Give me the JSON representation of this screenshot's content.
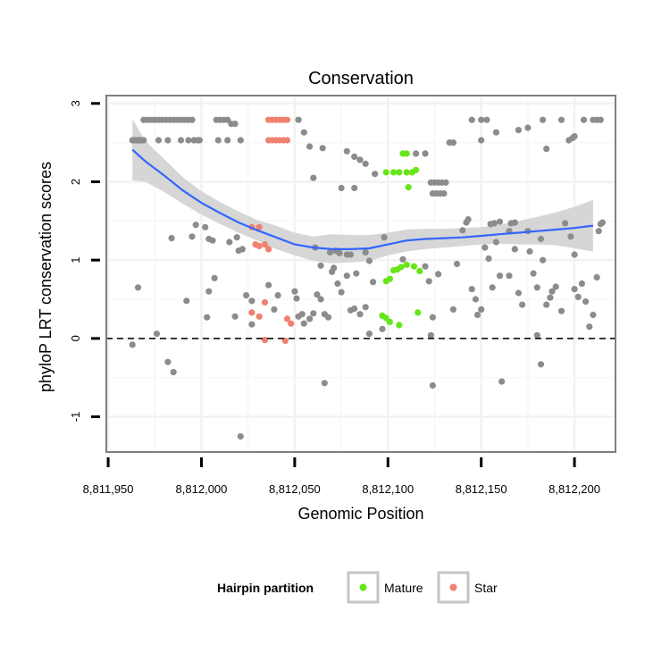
{
  "chart_data": {
    "type": "scatter",
    "title": "Conservation",
    "xlabel": "Genomic Position",
    "ylabel": "phyloP LRT conservation scores",
    "xlim": [
      8811949,
      8812222
    ],
    "ylim": [
      -1.45,
      3.1
    ],
    "x_ticks": [
      8811950,
      8812000,
      8812050,
      8812100,
      8812150,
      8812200
    ],
    "x_tick_labels": [
      "8,811,950",
      "8,812,000",
      "8,812,050",
      "8,812,100",
      "8,812,150",
      "8,812,200"
    ],
    "y_ticks": [
      -1,
      0,
      1,
      2,
      3
    ],
    "y_tick_labels": [
      "-1",
      "0",
      "1",
      "2",
      "3"
    ],
    "reference_line": {
      "y": 0,
      "style": "dashed"
    },
    "grid": true,
    "legend": {
      "title": "Hairpin partition",
      "position": "bottom",
      "entries": [
        {
          "label": "Mature",
          "color": "#66e61a"
        },
        {
          "label": "Star",
          "color": "#f08070"
        }
      ]
    },
    "colors": {
      "other": "#8c8c8c",
      "Mature": "#66e61a",
      "Star": "#f08070",
      "smooth": "#3366ff",
      "band": "#d4d4d4"
    },
    "series": [
      {
        "name": "Other",
        "points": [
          [
            8811963,
            2.53
          ],
          [
            8811964,
            2.53
          ],
          [
            8811965,
            2.53
          ],
          [
            8811966,
            2.53
          ],
          [
            8811967,
            2.53
          ],
          [
            8811968,
            2.53
          ],
          [
            8811969,
            2.53
          ],
          [
            8811969,
            2.79
          ],
          [
            8811971,
            2.79
          ],
          [
            8811973,
            2.79
          ],
          [
            8811975,
            2.79
          ],
          [
            8811977,
            2.79
          ],
          [
            8811979,
            2.79
          ],
          [
            8811981,
            2.79
          ],
          [
            8811983,
            2.79
          ],
          [
            8811985,
            2.79
          ],
          [
            8811987,
            2.79
          ],
          [
            8811989,
            2.79
          ],
          [
            8811991,
            2.79
          ],
          [
            8811993,
            2.79
          ],
          [
            8811995,
            2.79
          ],
          [
            8811977,
            2.53
          ],
          [
            8811982,
            2.53
          ],
          [
            8811989,
            2.53
          ],
          [
            8811993,
            2.53
          ],
          [
            8811996,
            2.53
          ],
          [
            8811998,
            2.53
          ],
          [
            8811999,
            2.53
          ],
          [
            8812008,
            2.79
          ],
          [
            8812010,
            2.79
          ],
          [
            8812012,
            2.79
          ],
          [
            8812014,
            2.79
          ],
          [
            8812016,
            2.74
          ],
          [
            8812018,
            2.74
          ],
          [
            8812009,
            2.53
          ],
          [
            8812014,
            2.53
          ],
          [
            8812021,
            2.53
          ],
          [
            8812052,
            2.79
          ],
          [
            8812055,
            2.63
          ],
          [
            8812058,
            2.45
          ],
          [
            8812065,
            2.43
          ],
          [
            8812060,
            2.05
          ],
          [
            8812078,
            2.39
          ],
          [
            8812082,
            2.32
          ],
          [
            8812085,
            2.28
          ],
          [
            8812088,
            2.23
          ],
          [
            8812075,
            1.92
          ],
          [
            8812082,
            1.92
          ],
          [
            8812093,
            2.1
          ],
          [
            8812115,
            2.36
          ],
          [
            8812120,
            2.36
          ],
          [
            8812123,
            1.99
          ],
          [
            8812125,
            1.99
          ],
          [
            8812127,
            1.99
          ],
          [
            8812129,
            1.99
          ],
          [
            8812131,
            1.99
          ],
          [
            8812124,
            1.85
          ],
          [
            8812126,
            1.85
          ],
          [
            8812128,
            1.85
          ],
          [
            8812130,
            1.85
          ],
          [
            8812133,
            2.5
          ],
          [
            8812135,
            2.5
          ],
          [
            8812145,
            2.79
          ],
          [
            8812150,
            2.79
          ],
          [
            8812153,
            2.79
          ],
          [
            8812150,
            2.53
          ],
          [
            8812158,
            2.63
          ],
          [
            8812170,
            2.66
          ],
          [
            8812175,
            2.69
          ],
          [
            8812183,
            2.79
          ],
          [
            8812185,
            2.42
          ],
          [
            8812193,
            2.79
          ],
          [
            8812197,
            2.53
          ],
          [
            8812199,
            2.56
          ],
          [
            8812200,
            2.58
          ],
          [
            8812205,
            2.79
          ],
          [
            8812210,
            2.79
          ],
          [
            8812212,
            2.79
          ],
          [
            8812214,
            2.79
          ],
          [
            8811963,
            -0.08
          ],
          [
            8811966,
            0.65
          ],
          [
            8811976,
            0.06
          ],
          [
            8811982,
            -0.3
          ],
          [
            8811985,
            -0.43
          ],
          [
            8811984,
            1.28
          ],
          [
            8811992,
            0.48
          ],
          [
            8811995,
            1.3
          ],
          [
            8811997,
            1.45
          ],
          [
            8812002,
            1.42
          ],
          [
            8812004,
            1.27
          ],
          [
            8812006,
            1.25
          ],
          [
            8812004,
            0.6
          ],
          [
            8812003,
            0.27
          ],
          [
            8812007,
            0.77
          ],
          [
            8812015,
            1.23
          ],
          [
            8812019,
            1.29
          ],
          [
            8812020,
            1.12
          ],
          [
            8812022,
            1.14
          ],
          [
            8812018,
            0.28
          ],
          [
            8812021,
            -1.25
          ],
          [
            8812024,
            0.55
          ],
          [
            8812027,
            0.48
          ],
          [
            8812027,
            0.18
          ],
          [
            8812036,
            0.68
          ],
          [
            8812039,
            0.37
          ],
          [
            8812041,
            0.55
          ],
          [
            8812050,
            0.6
          ],
          [
            8812051,
            0.51
          ],
          [
            8812052,
            0.28
          ],
          [
            8812054,
            0.31
          ],
          [
            8812055,
            0.19
          ],
          [
            8812058,
            0.25
          ],
          [
            8812060,
            0.32
          ],
          [
            8812062,
            0.56
          ],
          [
            8812064,
            0.5
          ],
          [
            8812066,
            0.31
          ],
          [
            8812068,
            0.27
          ],
          [
            8812070,
            0.85
          ],
          [
            8812071,
            0.9
          ],
          [
            8812073,
            0.7
          ],
          [
            8812075,
            0.59
          ],
          [
            8812078,
            0.8
          ],
          [
            8812080,
            0.36
          ],
          [
            8812082,
            0.38
          ],
          [
            8812085,
            0.31
          ],
          [
            8812088,
            0.4
          ],
          [
            8812090,
            0.06
          ],
          [
            8812066,
            -0.57
          ],
          [
            8812061,
            1.16
          ],
          [
            8812064,
            0.93
          ],
          [
            8812069,
            1.1
          ],
          [
            8812072,
            1.12
          ],
          [
            8812074,
            1.09
          ],
          [
            8812078,
            1.07
          ],
          [
            8812080,
            1.07
          ],
          [
            8812083,
            0.83
          ],
          [
            8812088,
            1.1
          ],
          [
            8812090,
            0.99
          ],
          [
            8812092,
            0.72
          ],
          [
            8812097,
            0.12
          ],
          [
            8812098,
            1.29
          ],
          [
            8812108,
            1.01
          ],
          [
            8812120,
            0.92
          ],
          [
            8812122,
            0.73
          ],
          [
            8812124,
            0.27
          ],
          [
            8812123,
            0.04
          ],
          [
            8812124,
            -0.6
          ],
          [
            8812127,
            0.82
          ],
          [
            8812135,
            0.37
          ],
          [
            8812137,
            0.95
          ],
          [
            8812142,
            1.48
          ],
          [
            8812143,
            1.52
          ],
          [
            8812145,
            0.63
          ],
          [
            8812147,
            0.5
          ],
          [
            8812148,
            0.3
          ],
          [
            8812150,
            0.37
          ],
          [
            8812152,
            1.16
          ],
          [
            8812154,
            1.02
          ],
          [
            8812156,
            0.65
          ],
          [
            8812158,
            1.23
          ],
          [
            8812160,
            0.8
          ],
          [
            8812161,
            -0.55
          ],
          [
            8812165,
            1.37
          ],
          [
            8812166,
            1.47
          ],
          [
            8812168,
            1.48
          ],
          [
            8812168,
            1.14
          ],
          [
            8812170,
            0.58
          ],
          [
            8812172,
            0.43
          ],
          [
            8812175,
            1.37
          ],
          [
            8812176,
            1.11
          ],
          [
            8812178,
            0.83
          ],
          [
            8812180,
            0.65
          ],
          [
            8812182,
            1.27
          ],
          [
            8812183,
            1.0
          ],
          [
            8812185,
            0.43
          ],
          [
            8812180,
            0.04
          ],
          [
            8812182,
            -0.33
          ],
          [
            8812187,
            0.52
          ],
          [
            8812190,
            0.66
          ],
          [
            8812193,
            0.35
          ],
          [
            8812195,
            1.47
          ],
          [
            8812198,
            1.3
          ],
          [
            8812200,
            1.07
          ],
          [
            8812202,
            0.53
          ],
          [
            8812204,
            0.7
          ],
          [
            8812206,
            0.47
          ],
          [
            8812208,
            0.15
          ],
          [
            8812210,
            0.3
          ],
          [
            8812212,
            0.78
          ],
          [
            8812213,
            1.37
          ],
          [
            8812214,
            1.46
          ],
          [
            8812215,
            1.48
          ],
          [
            8812200,
            0.63
          ],
          [
            8812188,
            0.6
          ],
          [
            8812155,
            1.46
          ],
          [
            8812157,
            1.47
          ],
          [
            8812160,
            1.49
          ],
          [
            8812165,
            0.8
          ],
          [
            8812140,
            1.38
          ]
        ]
      },
      {
        "name": "Mature",
        "points": [
          [
            8812108,
            2.36
          ],
          [
            8812110,
            2.36
          ],
          [
            8812099,
            2.12
          ],
          [
            8812103,
            2.12
          ],
          [
            8812106,
            2.12
          ],
          [
            8812110,
            2.12
          ],
          [
            8812113,
            2.12
          ],
          [
            8812115,
            2.15
          ],
          [
            8812111,
            1.93
          ],
          [
            8812099,
            0.73
          ],
          [
            8812101,
            0.76
          ],
          [
            8812103,
            0.87
          ],
          [
            8812105,
            0.88
          ],
          [
            8812107,
            0.91
          ],
          [
            8812110,
            0.94
          ],
          [
            8812114,
            0.92
          ],
          [
            8812117,
            0.86
          ],
          [
            8812097,
            0.29
          ],
          [
            8812099,
            0.26
          ],
          [
            8812101,
            0.21
          ],
          [
            8812106,
            0.17
          ],
          [
            8812116,
            0.33
          ]
        ]
      },
      {
        "name": "Star",
        "points": [
          [
            8812036,
            2.79
          ],
          [
            8812038,
            2.79
          ],
          [
            8812040,
            2.79
          ],
          [
            8812042,
            2.79
          ],
          [
            8812044,
            2.79
          ],
          [
            8812046,
            2.79
          ],
          [
            8812036,
            2.53
          ],
          [
            8812038,
            2.53
          ],
          [
            8812040,
            2.53
          ],
          [
            8812042,
            2.53
          ],
          [
            8812044,
            2.53
          ],
          [
            8812046,
            2.53
          ],
          [
            8812027,
            1.42
          ],
          [
            8812031,
            1.42
          ],
          [
            8812029,
            1.2
          ],
          [
            8812031,
            1.18
          ],
          [
            8812034,
            1.2
          ],
          [
            8812036,
            1.14
          ],
          [
            8812027,
            0.33
          ],
          [
            8812031,
            0.28
          ],
          [
            8812034,
            0.46
          ],
          [
            8812046,
            0.25
          ],
          [
            8812048,
            0.19
          ],
          [
            8812034,
            -0.02
          ],
          [
            8812045,
            -0.03
          ]
        ]
      }
    ],
    "smooth": {
      "method": "loess",
      "x": [
        8811963,
        8811970,
        8811980,
        8811990,
        8812000,
        8812010,
        8812020,
        8812030,
        8812040,
        8812050,
        8812060,
        8812070,
        8812080,
        8812090,
        8812100,
        8812110,
        8812120,
        8812130,
        8812140,
        8812150,
        8812160,
        8812170,
        8812180,
        8812190,
        8812200,
        8812210
      ],
      "y": [
        2.41,
        2.26,
        2.08,
        1.89,
        1.73,
        1.6,
        1.48,
        1.38,
        1.29,
        1.2,
        1.16,
        1.14,
        1.14,
        1.15,
        1.2,
        1.25,
        1.27,
        1.28,
        1.29,
        1.31,
        1.33,
        1.35,
        1.37,
        1.39,
        1.41,
        1.44
      ],
      "lower": [
        2.02,
        2.0,
        1.87,
        1.72,
        1.58,
        1.46,
        1.35,
        1.25,
        1.14,
        1.06,
        0.99,
        0.96,
        0.97,
        0.99,
        1.06,
        1.11,
        1.14,
        1.16,
        1.18,
        1.2,
        1.21,
        1.2,
        1.2,
        1.19,
        1.15,
        1.11
      ],
      "upper": [
        2.8,
        2.52,
        2.29,
        2.06,
        1.88,
        1.74,
        1.62,
        1.51,
        1.44,
        1.35,
        1.3,
        1.33,
        1.32,
        1.32,
        1.35,
        1.39,
        1.4,
        1.4,
        1.41,
        1.42,
        1.45,
        1.5,
        1.55,
        1.61,
        1.68,
        1.77
      ]
    }
  }
}
